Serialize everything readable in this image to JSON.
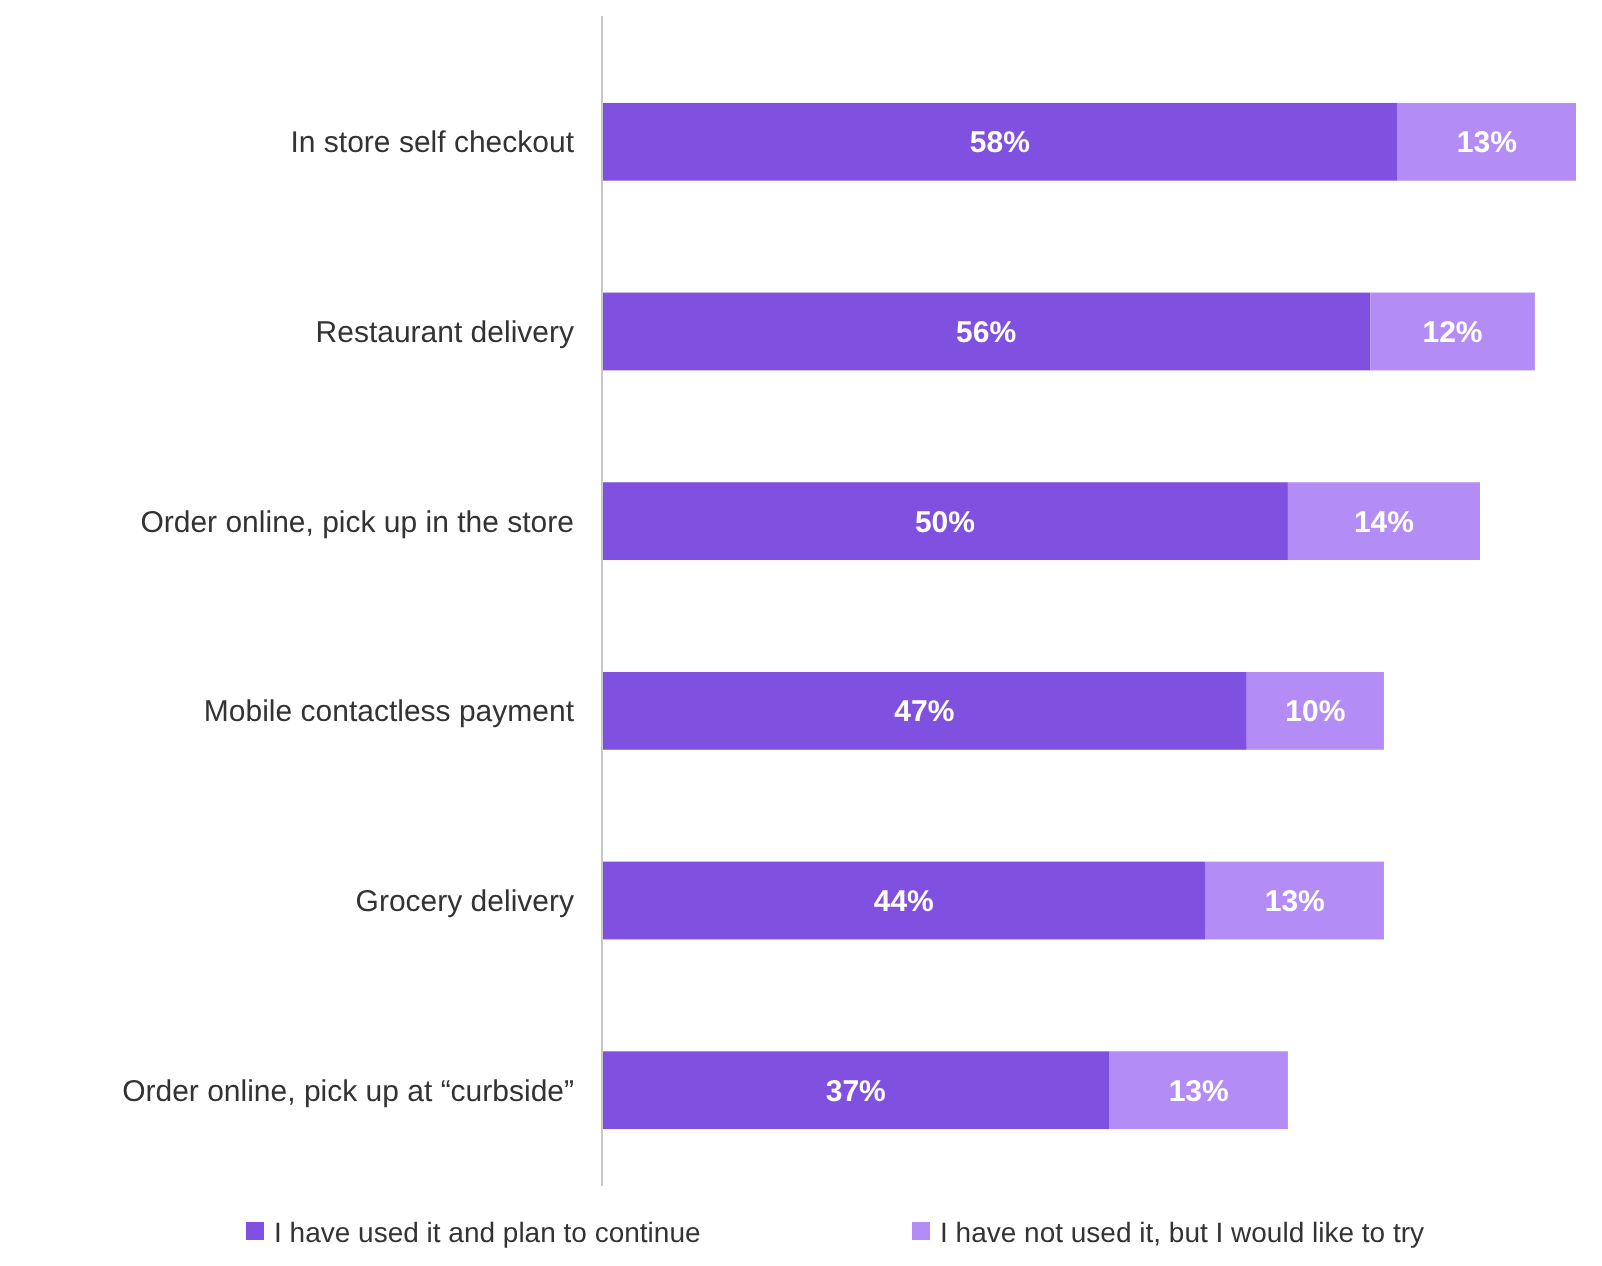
{
  "chart_data": {
    "type": "bar",
    "orientation": "horizontal",
    "stacked": true,
    "legend": "bottom",
    "grid": false,
    "categories": [
      "In store self checkout",
      "Restaurant delivery",
      "Order online, pick up in the store",
      "Mobile contactless payment",
      "Grocery delivery",
      "Order online, pick up at “curbside”"
    ],
    "series": [
      {
        "name": "I have used it and plan to continue",
        "color": "#8050e0",
        "values": [
          58,
          56,
          50,
          47,
          44,
          37
        ],
        "value_labels": [
          "58%",
          "56%",
          "50%",
          "47%",
          "44%",
          "37%"
        ]
      },
      {
        "name": "I have not used it, but I would like to try",
        "color": "#b48cf5",
        "values": [
          13,
          12,
          14,
          10,
          13,
          13
        ],
        "value_labels": [
          "13%",
          "12%",
          "14%",
          "10%",
          "13%",
          "13%"
        ]
      }
    ]
  }
}
